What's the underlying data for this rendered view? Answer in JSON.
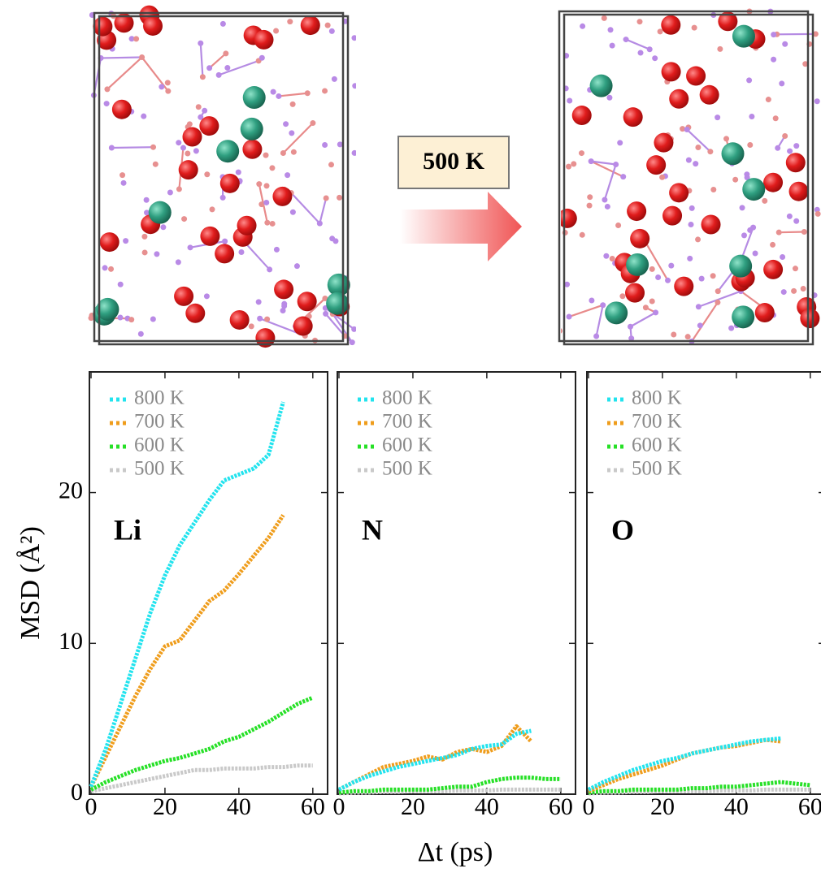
{
  "annotation": "500 K",
  "chart_data": [
    {
      "type": "line",
      "label": "Li",
      "ylabel": "MSD (Å²)",
      "ytick_labels": true,
      "x": [
        0,
        4,
        8,
        12,
        16,
        20,
        24,
        28,
        32,
        36,
        40,
        44,
        48,
        52,
        56,
        60
      ],
      "xlim": [
        0,
        64
      ],
      "ylim": [
        0,
        28
      ],
      "xticks": [
        0,
        20,
        40,
        60
      ],
      "yticks": [
        0,
        10,
        20
      ],
      "series": [
        {
          "name": "800 K",
          "color": "#22e3ee",
          "values": [
            0.5,
            3,
            6,
            9,
            12,
            14.5,
            16.5,
            18,
            19.5,
            20.8,
            21.2,
            21.6,
            22.5,
            26,
            null,
            null
          ]
        },
        {
          "name": "700 K",
          "color": "#ef9d1c",
          "values": [
            0.5,
            2.5,
            4.5,
            6.5,
            8.3,
            9.8,
            10.2,
            11.5,
            12.8,
            13.5,
            14.6,
            15.8,
            17,
            18.5,
            null,
            null
          ]
        },
        {
          "name": "600 K",
          "color": "#27e027",
          "values": [
            0.3,
            0.8,
            1.2,
            1.6,
            1.9,
            2.2,
            2.4,
            2.7,
            3,
            3.5,
            3.8,
            4.3,
            4.8,
            5.4,
            6,
            6.4
          ]
        },
        {
          "name": "500 K",
          "color": "#c9c9c9",
          "values": [
            0.2,
            0.4,
            0.6,
            0.8,
            1,
            1.2,
            1.4,
            1.6,
            1.6,
            1.7,
            1.7,
            1.7,
            1.8,
            1.8,
            1.9,
            1.9
          ]
        }
      ]
    },
    {
      "type": "line",
      "label": "N",
      "xlabel": "Δt (ps)",
      "ytick_labels": false,
      "x": [
        0,
        4,
        8,
        12,
        16,
        20,
        24,
        28,
        32,
        36,
        40,
        44,
        48,
        52,
        56,
        60
      ],
      "xlim": [
        0,
        64
      ],
      "ylim": [
        0,
        28
      ],
      "xticks": [
        0,
        20,
        40,
        60
      ],
      "yticks": [
        0,
        10,
        20
      ],
      "series": [
        {
          "name": "800 K",
          "color": "#22e3ee",
          "values": [
            0.3,
            0.8,
            1.2,
            1.5,
            1.8,
            2,
            2.2,
            2.4,
            2.6,
            3,
            3.2,
            3.3,
            4,
            4.2,
            null,
            null
          ]
        },
        {
          "name": "700 K",
          "color": "#ef9d1c",
          "values": [
            0.3,
            0.8,
            1.3,
            1.8,
            2,
            2.2,
            2.5,
            2.3,
            2.8,
            3,
            2.8,
            3.2,
            4.5,
            3.5,
            null,
            null
          ]
        },
        {
          "name": "600 K",
          "color": "#27e027",
          "values": [
            0.1,
            0.2,
            0.2,
            0.3,
            0.3,
            0.3,
            0.3,
            0.4,
            0.5,
            0.5,
            0.8,
            1,
            1.1,
            1.1,
            1,
            1
          ]
        },
        {
          "name": "500 K",
          "color": "#c9c9c9",
          "values": [
            0.05,
            0.1,
            0.1,
            0.15,
            0.15,
            0.2,
            0.2,
            0.2,
            0.25,
            0.25,
            0.25,
            0.3,
            0.3,
            0.3,
            0.3,
            0.3
          ]
        }
      ]
    },
    {
      "type": "line",
      "label": "O",
      "ytick_labels": false,
      "x": [
        0,
        4,
        8,
        12,
        16,
        20,
        24,
        28,
        32,
        36,
        40,
        44,
        48,
        52,
        56,
        60
      ],
      "xlim": [
        0,
        64
      ],
      "ylim": [
        0,
        28
      ],
      "xticks": [
        0,
        20,
        40,
        60
      ],
      "yticks": [
        0,
        10,
        20
      ],
      "series": [
        {
          "name": "800 K",
          "color": "#22e3ee",
          "values": [
            0.3,
            0.8,
            1.2,
            1.6,
            1.9,
            2.2,
            2.4,
            2.7,
            2.9,
            3.1,
            3.3,
            3.5,
            3.6,
            3.7,
            null,
            null
          ]
        },
        {
          "name": "700 K",
          "color": "#ef9d1c",
          "values": [
            0.2,
            0.6,
            1,
            1.3,
            1.6,
            1.9,
            2.3,
            2.7,
            2.9,
            3.1,
            3.2,
            3.4,
            3.6,
            3.5,
            null,
            null
          ]
        },
        {
          "name": "600 K",
          "color": "#27e027",
          "values": [
            0.1,
            0.2,
            0.2,
            0.3,
            0.3,
            0.3,
            0.3,
            0.4,
            0.4,
            0.5,
            0.5,
            0.6,
            0.7,
            0.8,
            0.7,
            0.6
          ]
        },
        {
          "name": "500 K",
          "color": "#c9c9c9",
          "values": [
            0.05,
            0.1,
            0.1,
            0.15,
            0.15,
            0.2,
            0.2,
            0.2,
            0.2,
            0.25,
            0.25,
            0.25,
            0.3,
            0.3,
            0.3,
            0.3
          ]
        }
      ]
    }
  ]
}
